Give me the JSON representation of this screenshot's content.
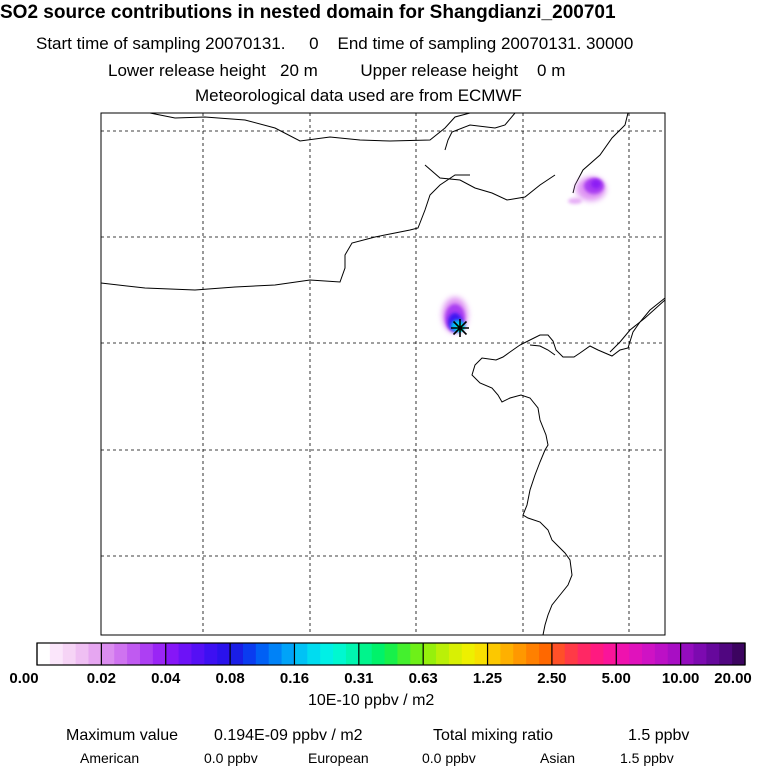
{
  "header": {
    "title": "SO2 source contributions in nested domain for Shangdianzi_200701",
    "start_label": "Start time of sampling",
    "start_value": "20070131.     0",
    "end_label": "End time of sampling",
    "end_value": "20070131. 30000",
    "lower_label": "Lower release height",
    "lower_value": "20 m",
    "upper_label": "Upper release height",
    "upper_value": "0 m",
    "met_text": "Meteorological data used are from ECMWF"
  },
  "colorbar": {
    "labels": [
      "0.00",
      "0.02",
      "0.04",
      "0.08",
      "0.16",
      "0.31",
      "0.63",
      "1.25",
      "2.50",
      "5.00",
      "10.00",
      "20.00"
    ],
    "colors": [
      "#ffffff",
      "#fbe6fb",
      "#f6d4f6",
      "#efbff3",
      "#e6a6f1",
      "#db8df0",
      "#cf73f0",
      "#c05af1",
      "#ad3ff3",
      "#9a25f6",
      "#8616f7",
      "#6d12f7",
      "#5510f5",
      "#3d10f2",
      "#2a12ec",
      "#1a1ee6",
      "#0a3cf0",
      "#0060f5",
      "#0082f7",
      "#00a3f8",
      "#00c2f5",
      "#00dcf0",
      "#00f0e6",
      "#00f8d0",
      "#00f6b0",
      "#00f48c",
      "#00f26a",
      "#18f04a",
      "#44f02e",
      "#6ef018",
      "#96f00c",
      "#baf008",
      "#d8f004",
      "#eef000",
      "#f8e000",
      "#fcc800",
      "#feb000",
      "#ff9800",
      "#ff8000",
      "#ff6800",
      "#ff5028",
      "#ff3a46",
      "#ff2864",
      "#ff1a80",
      "#fa149a",
      "#ef12ae",
      "#e012bc",
      "#cf12c4",
      "#bc10c6",
      "#a80ec4",
      "#940cbe",
      "#7c0ab0",
      "#66089c",
      "#500680",
      "#3c0460"
    ],
    "unit": "10E-10 ppbv / m2"
  },
  "map": {
    "station_marker": "station-star-icon",
    "grid": "dashed",
    "plume_colors": {
      "outer": "#dc8cf2",
      "mid": "#a93cf2",
      "core": "#3c16f2",
      "high": "#00c8f5",
      "peak": "#00f0d0"
    }
  },
  "footer": {
    "max_label": "Maximum value",
    "max_value": "0.194E-09 ppbv / m2",
    "total_label": "Total mixing ratio",
    "total_value": "1.5 ppbv",
    "american_label": "American",
    "american_value": "0.0 ppbv",
    "european_label": "European",
    "european_value": "0.0 ppbv",
    "asian_label": "Asian",
    "asian_value": "1.5 ppbv"
  }
}
